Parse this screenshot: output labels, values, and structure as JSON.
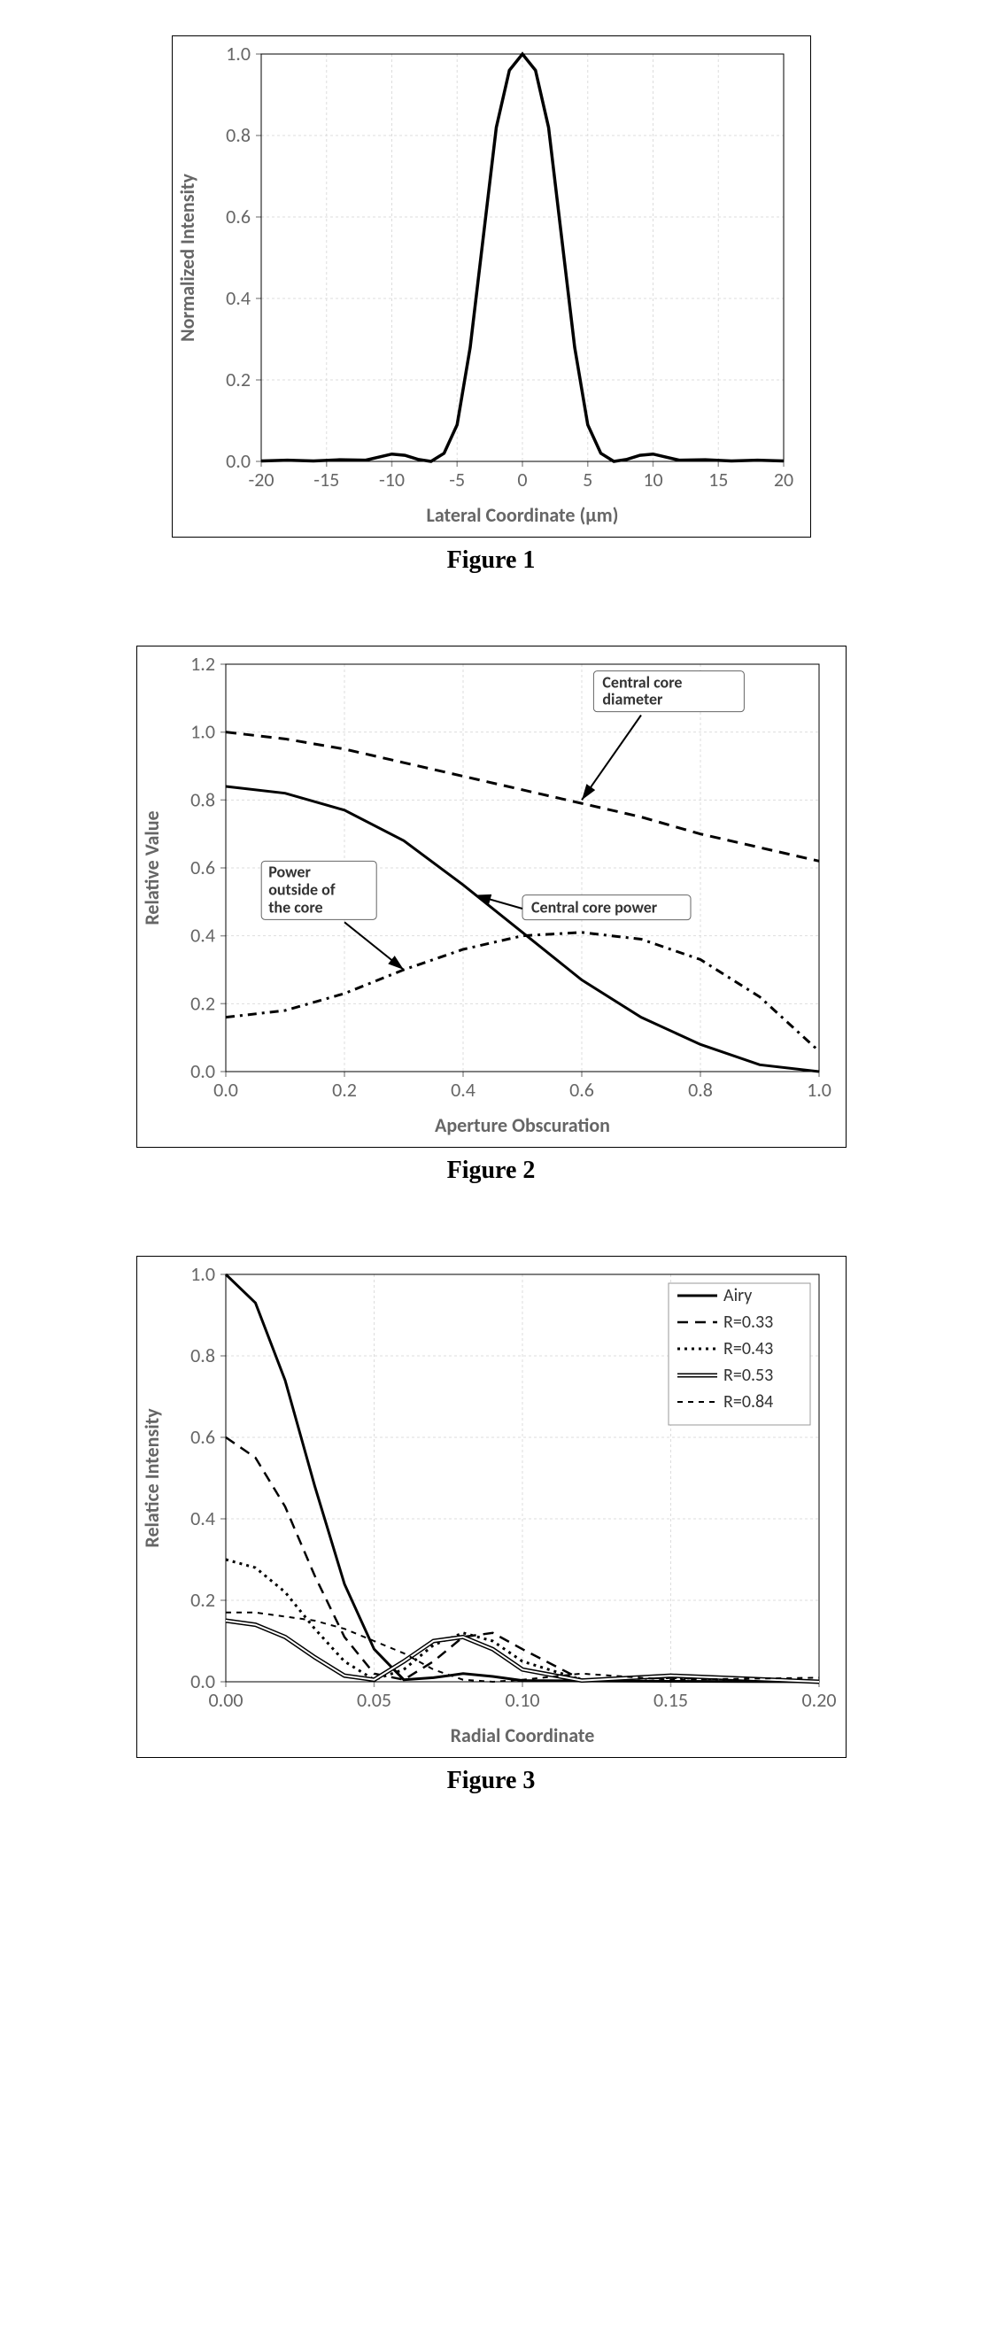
{
  "figure1": {
    "caption": "Figure 1",
    "type": "line",
    "xlabel": "Lateral Coordinate (μm)",
    "ylabel": "Normalized Intensity",
    "xlim": [
      -20,
      20
    ],
    "ylim": [
      0.0,
      1.0
    ],
    "xticks": [
      -20,
      -15,
      -10,
      -5,
      0,
      5,
      10,
      15,
      20
    ],
    "yticks": [
      0.0,
      0.2,
      0.4,
      0.6,
      0.8,
      1.0
    ],
    "line_color": "#000000",
    "line_width": 3.5,
    "grid_color": "#dddddd",
    "background_color": "#ffffff",
    "data": {
      "x": [
        -20,
        -18,
        -16,
        -14,
        -12,
        -10,
        -9,
        -8,
        -7,
        -6,
        -5,
        -4,
        -3,
        -2,
        -1,
        0,
        1,
        2,
        3,
        4,
        5,
        6,
        7,
        8,
        9,
        10,
        12,
        14,
        16,
        18,
        20
      ],
      "y": [
        0.001,
        0.003,
        0.001,
        0.004,
        0.003,
        0.018,
        0.015,
        0.005,
        0.0,
        0.02,
        0.09,
        0.28,
        0.55,
        0.82,
        0.96,
        1.0,
        0.96,
        0.82,
        0.55,
        0.28,
        0.09,
        0.02,
        0.0,
        0.005,
        0.015,
        0.018,
        0.003,
        0.004,
        0.001,
        0.003,
        0.001
      ]
    }
  },
  "figure2": {
    "caption": "Figure 2",
    "type": "line",
    "xlabel": "Aperture Obscuration",
    "ylabel": "Relative Value",
    "xlim": [
      0.0,
      1.0
    ],
    "ylim": [
      0.0,
      1.2
    ],
    "xticks": [
      0.0,
      0.2,
      0.4,
      0.6,
      0.8,
      1.0
    ],
    "yticks": [
      0.0,
      0.2,
      0.4,
      0.6,
      0.8,
      1.0,
      1.2
    ],
    "grid_color": "#dddddd",
    "background_color": "#ffffff",
    "callouts": {
      "diameter": "Central core diameter",
      "power": "Central core power",
      "outside": "Power outside of the core"
    },
    "series": [
      {
        "name": "Central core diameter",
        "style": "dashed",
        "color": "#000000",
        "line_width": 3,
        "x": [
          0.0,
          0.1,
          0.2,
          0.3,
          0.4,
          0.5,
          0.6,
          0.7,
          0.8,
          0.9,
          1.0
        ],
        "y": [
          1.0,
          0.98,
          0.95,
          0.91,
          0.87,
          0.83,
          0.79,
          0.75,
          0.7,
          0.66,
          0.62
        ]
      },
      {
        "name": "Central core power",
        "style": "solid",
        "color": "#000000",
        "line_width": 3,
        "x": [
          0.0,
          0.1,
          0.2,
          0.3,
          0.4,
          0.5,
          0.6,
          0.7,
          0.8,
          0.9,
          1.0
        ],
        "y": [
          0.84,
          0.82,
          0.77,
          0.68,
          0.55,
          0.41,
          0.27,
          0.16,
          0.08,
          0.02,
          0.0
        ]
      },
      {
        "name": "Power outside of the core",
        "style": "dot-dash",
        "color": "#000000",
        "line_width": 3,
        "x": [
          0.0,
          0.1,
          0.2,
          0.3,
          0.4,
          0.5,
          0.6,
          0.7,
          0.8,
          0.9,
          0.95,
          1.0
        ],
        "y": [
          0.16,
          0.18,
          0.23,
          0.3,
          0.36,
          0.4,
          0.41,
          0.39,
          0.33,
          0.22,
          0.14,
          0.06
        ]
      }
    ]
  },
  "figure3": {
    "caption": "Figure 3",
    "type": "line",
    "xlabel": "Radial Coordinate",
    "ylabel": "Relatice Intensity",
    "xlim": [
      0.0,
      0.2
    ],
    "ylim": [
      0.0,
      1.0
    ],
    "xticks": [
      0.0,
      0.05,
      0.1,
      0.15,
      0.2
    ],
    "yticks": [
      0.0,
      0.2,
      0.4,
      0.6,
      0.8,
      1.0
    ],
    "grid_color": "#dddddd",
    "background_color": "#ffffff",
    "legend": [
      "Airy",
      "R=0.33",
      "R=0.43",
      "R=0.53",
      "R=0.84"
    ],
    "series": [
      {
        "name": "Airy",
        "style": "solid",
        "color": "#000000",
        "line_width": 3,
        "x": [
          0,
          0.01,
          0.02,
          0.03,
          0.04,
          0.05,
          0.06,
          0.07,
          0.08,
          0.09,
          0.1,
          0.12,
          0.15,
          0.2
        ],
        "y": [
          1.0,
          0.93,
          0.74,
          0.48,
          0.24,
          0.08,
          0.005,
          0.01,
          0.02,
          0.013,
          0.003,
          0.002,
          0.001,
          0.0
        ]
      },
      {
        "name": "R=0.33",
        "style": "dashed",
        "color": "#000000",
        "line_width": 2.5,
        "x": [
          0,
          0.01,
          0.02,
          0.03,
          0.04,
          0.05,
          0.06,
          0.07,
          0.08,
          0.09,
          0.1,
          0.12,
          0.15,
          0.2
        ],
        "y": [
          0.6,
          0.55,
          0.43,
          0.26,
          0.11,
          0.02,
          0.005,
          0.05,
          0.11,
          0.12,
          0.08,
          0.005,
          0.01,
          0.0
        ]
      },
      {
        "name": "R=0.43",
        "style": "dotted",
        "color": "#000000",
        "line_width": 3,
        "x": [
          0,
          0.01,
          0.02,
          0.03,
          0.04,
          0.05,
          0.06,
          0.07,
          0.08,
          0.09,
          0.1,
          0.12,
          0.15,
          0.2
        ],
        "y": [
          0.3,
          0.28,
          0.22,
          0.13,
          0.05,
          0.005,
          0.03,
          0.09,
          0.12,
          0.1,
          0.05,
          0.005,
          0.01,
          0.0
        ]
      },
      {
        "name": "R=0.53",
        "style": "double",
        "color": "#000000",
        "line_width": 1,
        "x": [
          0,
          0.01,
          0.02,
          0.03,
          0.04,
          0.05,
          0.06,
          0.07,
          0.08,
          0.09,
          0.1,
          0.12,
          0.15,
          0.2
        ],
        "y": [
          0.15,
          0.14,
          0.11,
          0.06,
          0.015,
          0.005,
          0.05,
          0.1,
          0.11,
          0.08,
          0.03,
          0.003,
          0.015,
          0.0
        ]
      },
      {
        "name": "R=0.84",
        "style": "loose-dash",
        "color": "#000000",
        "line_width": 2,
        "x": [
          0,
          0.01,
          0.02,
          0.03,
          0.04,
          0.05,
          0.06,
          0.07,
          0.08,
          0.09,
          0.1,
          0.12,
          0.15,
          0.2
        ],
        "y": [
          0.17,
          0.17,
          0.16,
          0.15,
          0.13,
          0.1,
          0.07,
          0.03,
          0.005,
          0.0,
          0.005,
          0.02,
          0.005,
          0.01
        ]
      }
    ]
  }
}
